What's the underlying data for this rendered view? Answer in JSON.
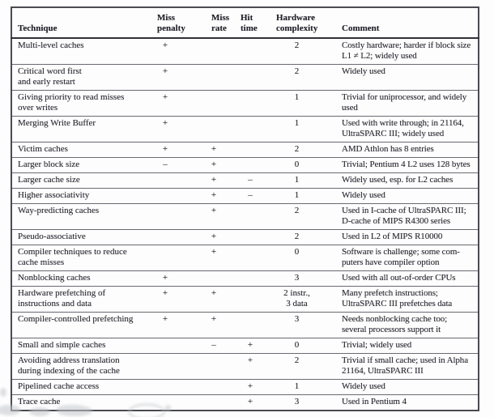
{
  "table": {
    "header": {
      "technique": "Technique",
      "miss_penalty": "Miss\npenalty",
      "miss_rate": "Miss\nrate",
      "hit_time": "Hit\ntime",
      "hw_complexity": "Hardware\ncomplexity",
      "comment": "Comment"
    },
    "rows": [
      {
        "technique": "Multi-level caches",
        "miss_penalty": "+",
        "miss_rate": "",
        "hit_time": "",
        "hw_complexity": "2",
        "comment": "Costly hardware; harder if block size\nL1 ≠ L2; widely used"
      },
      {
        "technique": "Critical word first\nand early restart",
        "miss_penalty": "+",
        "miss_rate": "",
        "hit_time": "",
        "hw_complexity": "2",
        "comment": "Widely used"
      },
      {
        "technique": "Giving priority to read misses\nover writes",
        "miss_penalty": "+",
        "miss_rate": "",
        "hit_time": "",
        "hw_complexity": "1",
        "comment": "Trivial for uniprocessor, and widely\nused"
      },
      {
        "technique": "Merging Write Buffer",
        "miss_penalty": "+",
        "miss_rate": "",
        "hit_time": "",
        "hw_complexity": "1",
        "comment": "Used with write through; in 21164,\nUltraSPARC III; widely used"
      },
      {
        "technique": "Victim caches",
        "miss_penalty": "+",
        "miss_rate": "+",
        "hit_time": "",
        "hw_complexity": "2",
        "comment": "AMD Athlon has 8 entries"
      },
      {
        "technique": "Larger block size",
        "miss_penalty": "–",
        "miss_rate": "+",
        "hit_time": "",
        "hw_complexity": "0",
        "comment": "Trivial; Pentium 4 L2 uses 128 bytes"
      },
      {
        "technique": "Larger cache size",
        "miss_penalty": "",
        "miss_rate": "+",
        "hit_time": "–",
        "hw_complexity": "1",
        "comment": "Widely used, esp. for L2 caches"
      },
      {
        "technique": "Higher associativity",
        "miss_penalty": "",
        "miss_rate": "+",
        "hit_time": "–",
        "hw_complexity": "1",
        "comment": "Widely used"
      },
      {
        "technique": "Way-predicting caches",
        "miss_penalty": "",
        "miss_rate": "+",
        "hit_time": "",
        "hw_complexity": "2",
        "comment": "Used in I-cache of UltraSPARC III;\nD-cache of MIPS R4300 series"
      },
      {
        "technique": "Pseudo-associative",
        "miss_penalty": "",
        "miss_rate": "+",
        "hit_time": "",
        "hw_complexity": "2",
        "comment": "Used in L2 of MIPS R10000"
      },
      {
        "technique": "Compiler techniques to reduce\ncache misses",
        "miss_penalty": "",
        "miss_rate": "+",
        "hit_time": "",
        "hw_complexity": "0",
        "comment": "Software is challenge; some com-\nputers have compiler option"
      },
      {
        "technique": "Nonblocking caches",
        "miss_penalty": "+",
        "miss_rate": "",
        "hit_time": "",
        "hw_complexity": "3",
        "comment": "Used with all out-of-order CPUs"
      },
      {
        "technique": "Hardware prefetching of\ninstructions and data",
        "miss_penalty": "+",
        "miss_rate": "+",
        "hit_time": "",
        "hw_complexity": "2 instr.,\n3 data",
        "comment": "Many prefetch instructions;\nUltraSPARC III prefetches data"
      },
      {
        "technique": "Compiler-controlled prefetching",
        "miss_penalty": "+",
        "miss_rate": "+",
        "hit_time": "",
        "hw_complexity": "3",
        "comment": "Needs nonblocking cache too;\nseveral processors support it"
      },
      {
        "technique": "Small and simple caches",
        "miss_penalty": "",
        "miss_rate": "–",
        "hit_time": "+",
        "hw_complexity": "0",
        "comment": "Trivial; widely used"
      },
      {
        "technique": "Avoiding address translation\nduring indexing of the cache",
        "miss_penalty": "",
        "miss_rate": "",
        "hit_time": "+",
        "hw_complexity": "2",
        "comment": "Trivial if small cache; used in Alpha\n21164, UltraSPARC III"
      },
      {
        "technique": "Pipelined cache access",
        "miss_penalty": "",
        "miss_rate": "",
        "hit_time": "+",
        "hw_complexity": "1",
        "comment": "Widely used"
      },
      {
        "technique": "Trace cache",
        "miss_penalty": "",
        "miss_rate": "",
        "hit_time": "+",
        "hw_complexity": "3",
        "comment": "Used in Pentium 4"
      }
    ]
  },
  "colors": {
    "text": "#2a2a33",
    "rule_light": "#6a6a72",
    "rule_dark": "#303039",
    "outer_border": "#4a4a52",
    "background": "#fdfdfd"
  }
}
